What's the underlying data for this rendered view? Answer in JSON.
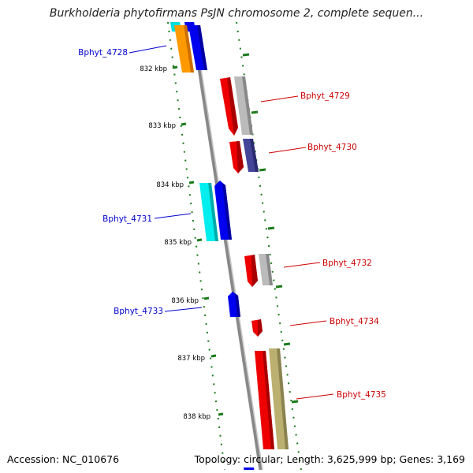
{
  "title": "Burkholderia phytofirmans PsJN chromosome 2, complete sequen...",
  "footer": {
    "accession": "Accession: NC_010676",
    "topology": "Topology: circular; Length: 3,625,999 bp; Genes: 3,169"
  },
  "ruler": {
    "labels": [
      "832 kbp",
      "833 kbp",
      "834 kbp",
      "835 kbp",
      "836 kbp",
      "837 kbp",
      "838 kbp"
    ],
    "tick_color": "#1a7a1a"
  },
  "genes": [
    {
      "name": "Bphyt_4728",
      "strand": "left",
      "label_color": "#0000cc"
    },
    {
      "name": "Bphyt_4729",
      "strand": "right",
      "label_color": "#cc0000"
    },
    {
      "name": "Bphyt_4730",
      "strand": "right",
      "label_color": "#cc0000"
    },
    {
      "name": "Bphyt_4731",
      "strand": "left",
      "label_color": "#0000cc"
    },
    {
      "name": "Bphyt_4732",
      "strand": "right",
      "label_color": "#cc0000"
    },
    {
      "name": "Bphyt_4733",
      "strand": "left",
      "label_color": "#0000cc"
    },
    {
      "name": "Bphyt_4734",
      "strand": "right",
      "label_color": "#cc0000"
    },
    {
      "name": "Bphyt_4735",
      "strand": "right",
      "label_color": "#cc0000"
    }
  ],
  "colors": {
    "blue": "#0000ee",
    "red": "#ee0000",
    "orange": "#ff9900",
    "cyan": "#00eeee",
    "gray": "#bbbbbb",
    "purple": "#444499",
    "olive": "#bbb070",
    "backbone": "#888888"
  }
}
